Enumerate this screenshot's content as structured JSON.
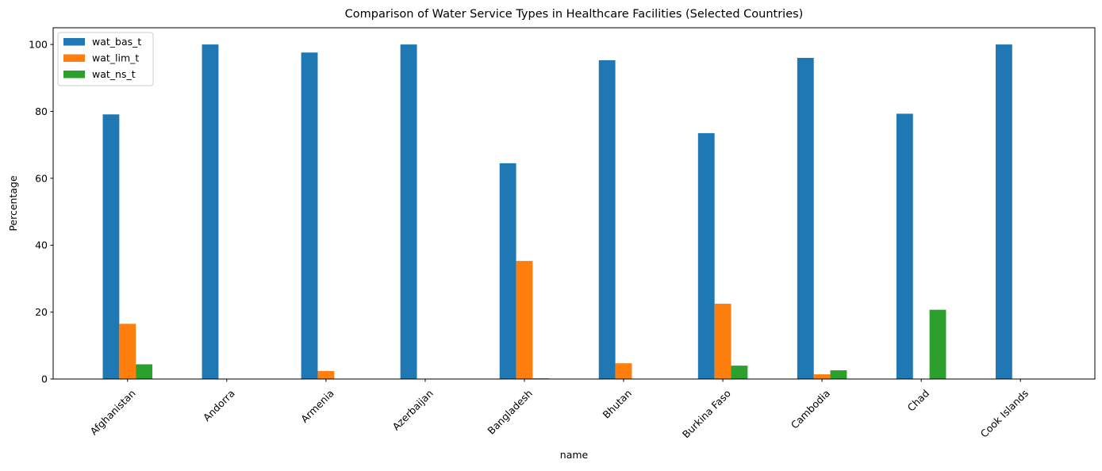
{
  "chart_data": {
    "type": "bar",
    "title": "Comparison of Water Service Types in Healthcare Facilities (Selected Countries)",
    "xlabel": "name",
    "ylabel": "Percentage",
    "ylim": [
      0,
      105
    ],
    "yticks": [
      0,
      20,
      40,
      60,
      80,
      100
    ],
    "grid": false,
    "legend_position": "upper-left",
    "categories": [
      "Afghanistan",
      "Andorra",
      "Armenia",
      "Azerbaijan",
      "Bangladesh",
      "Bhutan",
      "Burkina Faso",
      "Cambodia",
      "Chad",
      "Cook Islands"
    ],
    "series": [
      {
        "name": "wat_bas_t",
        "color": "#1f77b4",
        "values": [
          79.1,
          100,
          97.6,
          100,
          64.5,
          95.3,
          73.5,
          96,
          79.3,
          100
        ]
      },
      {
        "name": "wat_lim_t",
        "color": "#ff7f0e",
        "values": [
          16.5,
          0,
          2.4,
          0,
          35.3,
          4.7,
          22.5,
          1.4,
          0,
          0
        ]
      },
      {
        "name": "wat_ns_t",
        "color": "#2ca02c",
        "values": [
          4.4,
          0,
          0,
          0,
          0.2,
          0,
          4.0,
          2.6,
          20.7,
          0
        ]
      }
    ]
  }
}
